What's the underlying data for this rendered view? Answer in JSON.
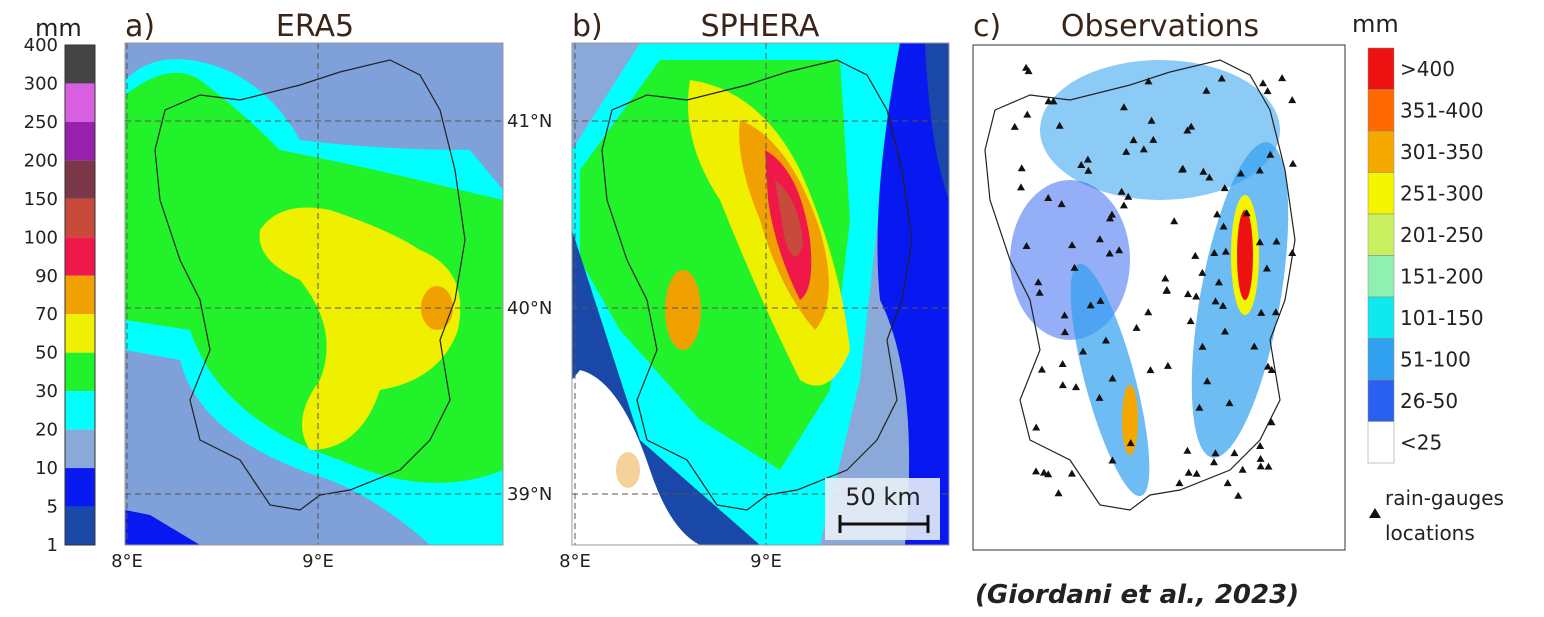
{
  "left_colorbar": {
    "unit": "mm",
    "ticks": [
      "400",
      "300",
      "250",
      "200",
      "150",
      "100",
      "90",
      "70",
      "50",
      "30",
      "20",
      "10",
      "5",
      "1"
    ],
    "colors": [
      "#444444",
      "#d860e0",
      "#9a20b0",
      "#7a3848",
      "#c84a3a",
      "#f01848",
      "#f0a000",
      "#eef000",
      "#22f22a",
      "#00ffff",
      "#8aa8d8",
      "#0818f0",
      "#1a48a8"
    ]
  },
  "panels": [
    {
      "label": "a)",
      "title": "ERA5",
      "x_ticks": [
        "8°E",
        "9°E"
      ],
      "y_ticks": [
        "41°N",
        "40°N",
        "39°N"
      ]
    },
    {
      "label": "b)",
      "title": "SPHERA",
      "x_ticks": [
        "8°E",
        "9°E"
      ],
      "scale_bar": "50 km"
    },
    {
      "label": "c)",
      "title": "Observations"
    }
  ],
  "right_legend": {
    "unit": "mm",
    "items": [
      {
        "label": ">400",
        "color": "#ee1111"
      },
      {
        "label": "351-400",
        "color": "#ff6a00"
      },
      {
        "label": "301-350",
        "color": "#f5a800"
      },
      {
        "label": "251-300",
        "color": "#f5f500"
      },
      {
        "label": "201-250",
        "color": "#c8f060"
      },
      {
        "label": "151-200",
        "color": "#90f0b0"
      },
      {
        "label": "101-150",
        "color": "#10e8f0"
      },
      {
        "label": "51-100",
        "color": "#30a0f0"
      },
      {
        "label": "26-50",
        "color": "#2a60f0"
      },
      {
        "label": "<25",
        "color": "#ffffff"
      }
    ],
    "gauges": [
      "rain-gauges",
      "locations"
    ]
  },
  "citation": "(Giordani et al., 2023)"
}
